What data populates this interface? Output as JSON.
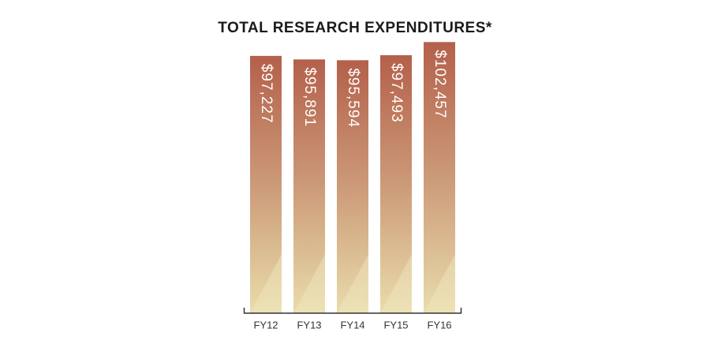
{
  "chart_data": {
    "type": "bar",
    "title": "TOTAL RESEARCH EXPENDITURES*",
    "categories": [
      "FY12",
      "FY13",
      "FY14",
      "FY15",
      "FY16"
    ],
    "values": [
      97227,
      95891,
      95594,
      97493,
      102457
    ],
    "value_labels": [
      "$97,227",
      "$95,891",
      "$95,594",
      "$97,493",
      "$102,457"
    ],
    "color": "#b5604a",
    "ylim": [
      0,
      110000
    ]
  }
}
